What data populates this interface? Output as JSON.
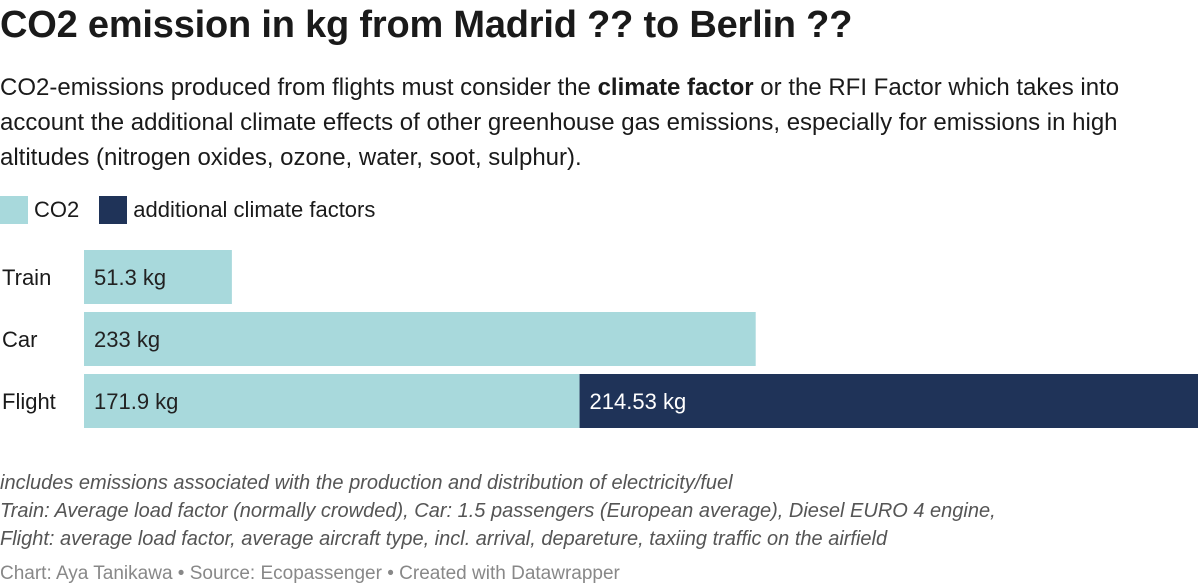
{
  "header": {
    "title": "CO2 emission in kg from Madrid ?? to Berlin ??",
    "description_before": "CO2-emissions produced from flights must consider the ",
    "description_bold": "climate factor",
    "description_after": " or the RFI Factor which takes into account the additional climate effects of other greenhouse gas emissions, especially for emissions in high altitudes (nitrogen oxides, ozone, water, soot, sulphur)."
  },
  "colors": {
    "co2": "#a8d9dc",
    "additional": "#1f3358"
  },
  "chart_data": {
    "type": "bar",
    "orientation": "horizontal",
    "stacked": true,
    "categories": [
      "Train",
      "Car",
      "Flight"
    ],
    "series": [
      {
        "name": "CO2",
        "values": [
          51.3,
          233,
          171.9
        ],
        "labels": [
          "51.3 kg",
          "233 kg",
          "171.9 kg"
        ]
      },
      {
        "name": "additional climate factors",
        "values": [
          0,
          0,
          214.53
        ],
        "labels": [
          "",
          "",
          "214.53 kg"
        ]
      }
    ],
    "legend_position": "top-left",
    "grid": false
  },
  "notes": [
    "includes emissions associated with the production and distribution of electricity/fuel",
    "Train: Average load factor (normally crowded), Car: 1.5 passengers (European average), Diesel EURO 4 engine,",
    "Flight: average load factor, average aircraft type, incl. arrival, depareture, taxiing traffic on the airfield"
  ],
  "footer": "Chart: Aya Tanikawa • Source: Ecopassenger • Created with Datawrapper"
}
